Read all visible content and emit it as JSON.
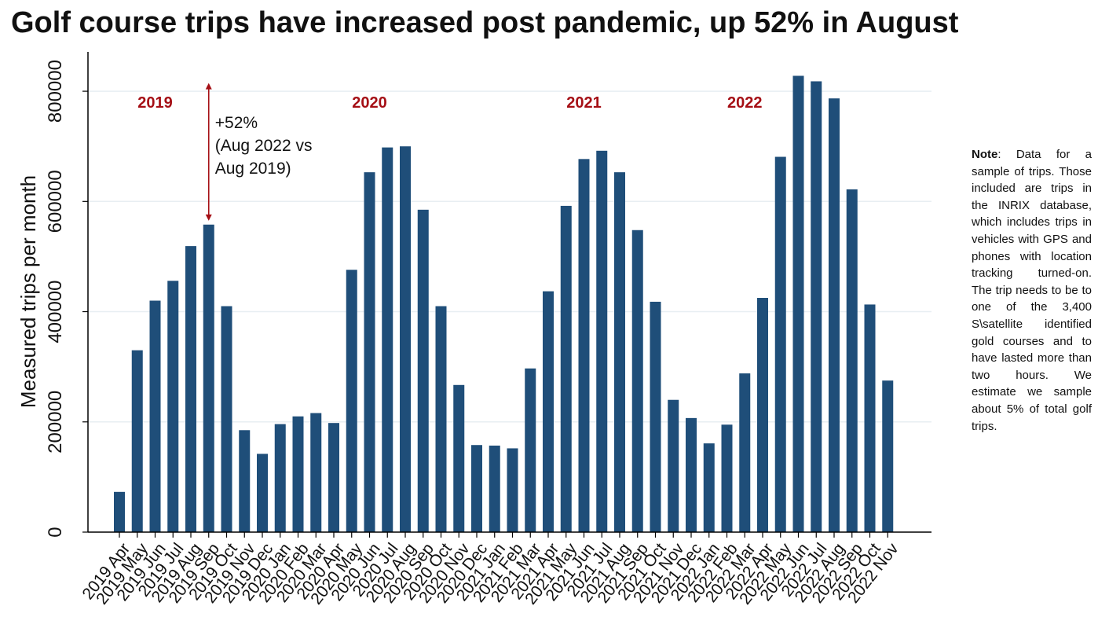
{
  "title": "Golf course trips have increased post pandemic, up 52% in August",
  "note": {
    "label": "Note",
    "text": ": Data for a sample of trips. Those included are trips in the INRIX database, which includes trips in vehicles with GPS and phones with location tracking turned-on. The trip needs to be to one of the 3,400 S\\satellite identified gold courses and to have lasted more than two hours. We estimate we sample about 5% of total golf trips."
  },
  "colors": {
    "bar": "#1f4e79",
    "annotation": "#a50f15",
    "grid": "#e8eef2",
    "axis": "#000000"
  },
  "chart_data": {
    "type": "bar",
    "title": "Golf course trips have increased post pandemic, up 52% in August",
    "xlabel": "",
    "ylabel": "Measured trips per month",
    "ylim": [
      0,
      870000
    ],
    "yticks": [
      0,
      200000,
      400000,
      600000,
      800000
    ],
    "grid": true,
    "categories": [
      "2019 Apr",
      "2019 May",
      "2019 Jun",
      "2019 Jul",
      "2019 Aug",
      "2019 Sep",
      "2019 Oct",
      "2019 Nov",
      "2019 Dec",
      "2020 Jan",
      "2020 Feb",
      "2020 Mar",
      "2020 Apr",
      "2020 May",
      "2020 Jun",
      "2020 Jul",
      "2020 Aug",
      "2020 Sep",
      "2020 Oct",
      "2020 Nov",
      "2020 Dec",
      "2021 Jan",
      "2021 Feb",
      "2021 Mar",
      "2021 Apr",
      "2021 May",
      "2021 Jun",
      "2021 Jul",
      "2021 Aug",
      "2021 Sep",
      "2021 Oct",
      "2021 Nov",
      "2021 Dec",
      "2022 Jan",
      "2022 Feb",
      "2022 Mar",
      "2022 Apr",
      "2022 May",
      "2022 Jun",
      "2022 Jul",
      "2022 Aug",
      "2022 Sep",
      "2022 Oct",
      "2022 Nov"
    ],
    "values": [
      73000,
      330000,
      420000,
      456000,
      519000,
      558000,
      410000,
      185000,
      142000,
      196000,
      210000,
      216000,
      198000,
      476000,
      653000,
      698000,
      700000,
      585000,
      410000,
      267000,
      158000,
      157000,
      152000,
      297000,
      437000,
      592000,
      677000,
      692000,
      653000,
      548000,
      418000,
      240000,
      207000,
      161000,
      195000,
      288000,
      425000,
      681000,
      828000,
      818000,
      787000,
      622000,
      413000,
      275000
    ],
    "annotations": {
      "year_labels": [
        {
          "text": "2019",
          "at": "2019 Jun"
        },
        {
          "text": "2020",
          "at": "2020 Jun"
        },
        {
          "text": "2021",
          "at": "2021 Jun"
        },
        {
          "text": "2022",
          "at": "2022 Mar"
        }
      ],
      "arrow": {
        "at": "2019 Sep",
        "from": 565000,
        "to": 815000
      },
      "arrow_text": [
        "+52%",
        "(Aug 2022 vs",
        "Aug 2019)"
      ]
    }
  }
}
